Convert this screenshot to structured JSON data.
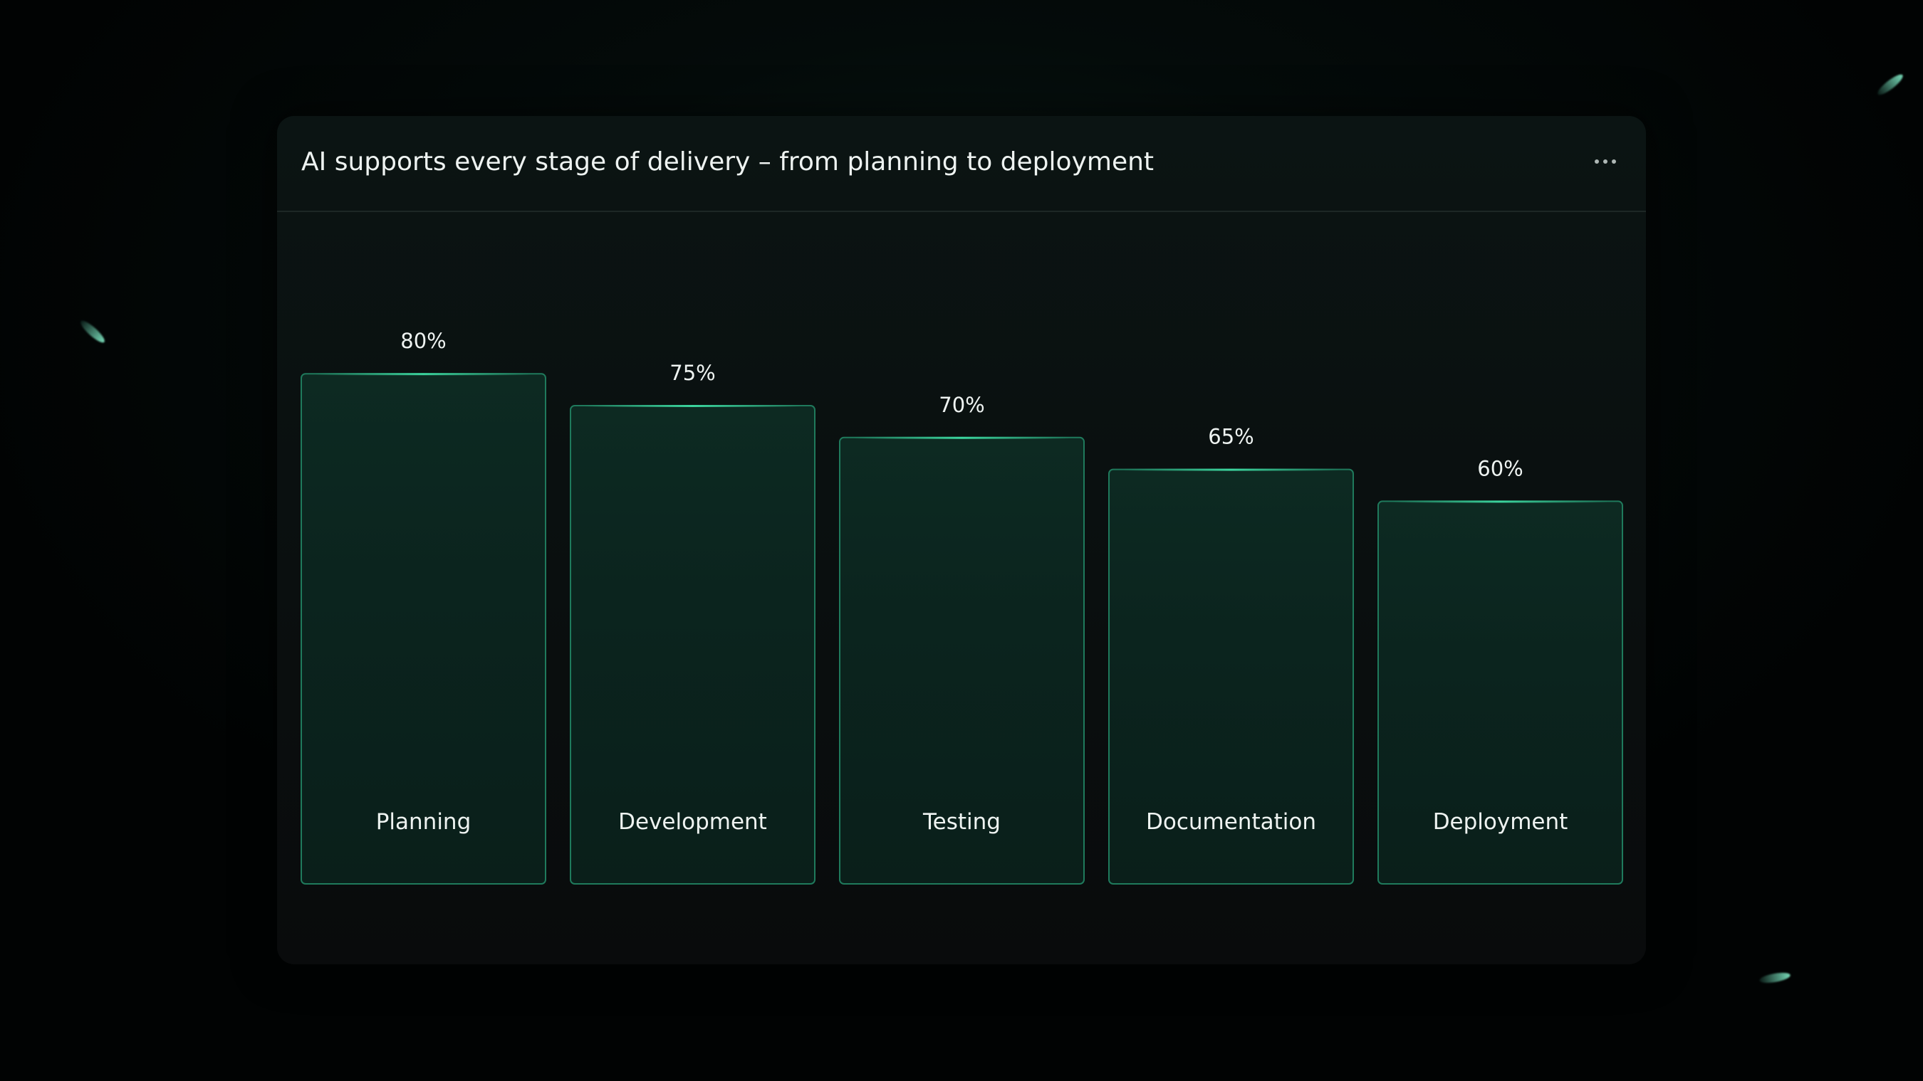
{
  "chart_data": {
    "type": "bar",
    "title": "AI supports every stage of delivery – from planning to deployment",
    "categories": [
      "Planning",
      "Development",
      "Testing",
      "Documentation",
      "Deployment"
    ],
    "values": [
      80,
      75,
      70,
      65,
      60
    ],
    "value_labels": [
      "80%",
      "75%",
      "70%",
      "65%",
      "60%"
    ],
    "xlabel": "",
    "ylabel": "",
    "ylim": [
      0,
      100
    ],
    "grid": false,
    "legend": "none"
  },
  "header": {
    "menu_icon": "more-horizontal-icon"
  },
  "colors": {
    "background": "#020606",
    "card": "#0a0f0f",
    "bar_fill_top": "#0d2a22",
    "bar_fill_bottom": "#0a1f1a",
    "bar_stroke": "#1f7a5c",
    "bar_highlight": "#3fe0a6",
    "text": "#eef3f1"
  }
}
